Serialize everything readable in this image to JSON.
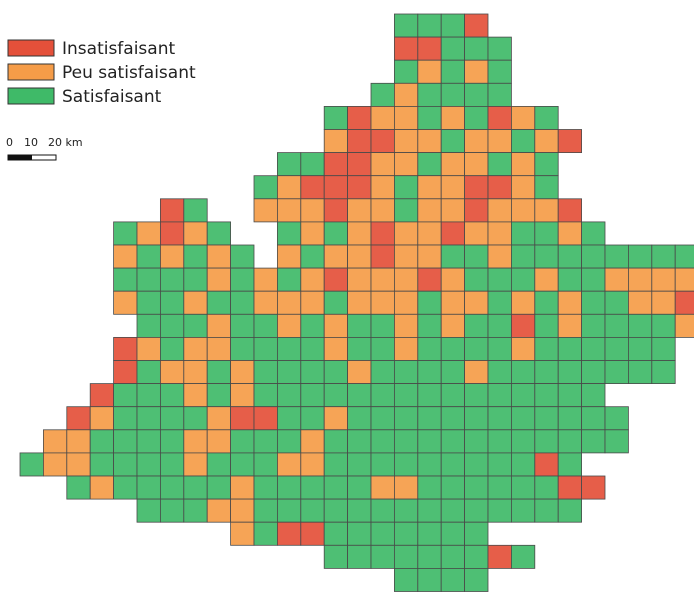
{
  "legend": {
    "items": [
      {
        "label": "Insatisfaisant",
        "color": "#e4503a"
      },
      {
        "label": "Peu satisfaisant",
        "color": "#f59c48"
      },
      {
        "label": "Satisfaisant",
        "color": "#3fba68"
      }
    ]
  },
  "scale_bar": {
    "labels": [
      "0",
      "10",
      "20 km"
    ]
  }
}
